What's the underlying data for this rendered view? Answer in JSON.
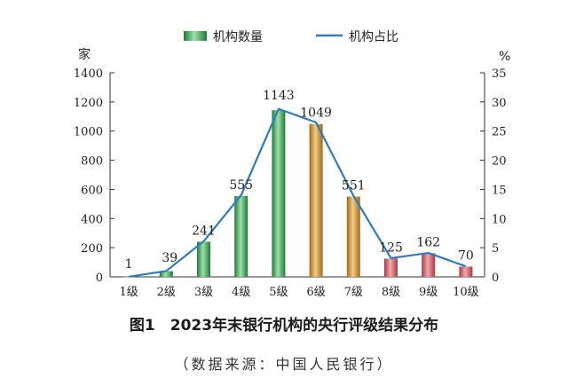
{
  "legend": {
    "bar_label": "机构数量",
    "line_label": "机构占比"
  },
  "axes": {
    "left_unit": "家",
    "right_unit": "%"
  },
  "caption": {
    "title": "图1　2023年末银行机构的央行评级结果分布",
    "source": "（数据来源：中国人民银行）"
  },
  "colors": {
    "green": "#2f9e4f",
    "orange": "#c08a2e",
    "red": "#c9575e",
    "line": "#2e7cc0"
  },
  "chart_data": {
    "type": "bar",
    "categories": [
      "1级",
      "2级",
      "3级",
      "4级",
      "5级",
      "6级",
      "7级",
      "8级",
      "9级",
      "10级"
    ],
    "series": [
      {
        "name": "机构数量",
        "type": "bar",
        "axis": "left",
        "values": [
          1,
          39,
          241,
          555,
          1143,
          1049,
          551,
          125,
          162,
          70
        ],
        "colors": [
          "green",
          "green",
          "green",
          "green",
          "green",
          "orange",
          "orange",
          "red",
          "red",
          "red"
        ]
      },
      {
        "name": "机构占比",
        "type": "line",
        "axis": "right",
        "values": [
          0.03,
          1.0,
          6.1,
          14.0,
          28.8,
          26.5,
          13.9,
          3.2,
          4.1,
          1.8
        ]
      }
    ],
    "y_left": {
      "ylim": [
        0,
        1400
      ],
      "ticks": [
        "0",
        "200",
        "400",
        "600",
        "800",
        "1000",
        "1200",
        "1400"
      ]
    },
    "y_right": {
      "ylim": [
        0,
        35
      ],
      "ticks": [
        "0",
        "5",
        "10",
        "15",
        "20",
        "25",
        "30",
        "35"
      ]
    },
    "data_labels": [
      "1",
      "39",
      "241",
      "555",
      "1143",
      "1049",
      "551",
      "125",
      "162",
      "70"
    ],
    "grid": false,
    "legend_position": "top"
  }
}
